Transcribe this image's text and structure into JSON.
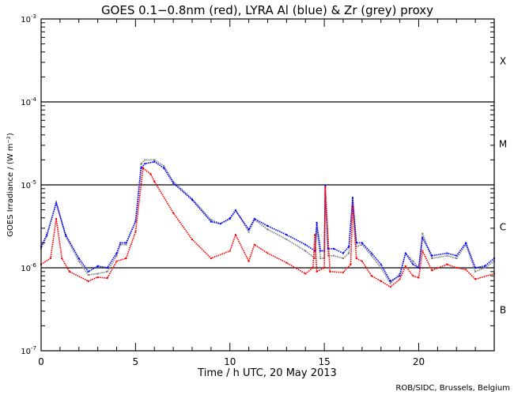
{
  "chart_data": {
    "type": "line",
    "title": "GOES 0.1−0.8nm (red), LYRA Al (blue) & Zr (grey) proxy",
    "xlabel": "Time / h UTC, 20 May 2013",
    "ylabel": "GOES Irradiance / (W m⁻²)",
    "xlim": [
      0,
      24
    ],
    "ylim": [
      1e-07,
      0.001
    ],
    "yscale": "log",
    "x_ticks": [
      "0",
      "5",
      "10",
      "15",
      "20"
    ],
    "y_ticks": [
      {
        "base": "10",
        "exp": "-3"
      },
      {
        "base": "10",
        "exp": "-4"
      },
      {
        "base": "10",
        "exp": "-5"
      },
      {
        "base": "10",
        "exp": "-6"
      },
      {
        "base": "10",
        "exp": "-7"
      }
    ],
    "flare_classes": [
      "X",
      "M",
      "C",
      "B"
    ],
    "reference_lines": [
      0.0001,
      1e-05,
      1e-06
    ],
    "credit": "ROB/SIDC, Brussels, Belgium",
    "series": [
      {
        "name": "LYRA Zr proxy",
        "color": "#808080",
        "x": [
          0,
          0.3,
          0.8,
          1.3,
          2,
          2.5,
          3,
          3.5,
          4,
          4.2,
          4.5,
          5,
          5.3,
          5.5,
          6,
          6.5,
          7,
          8,
          9,
          9.5,
          10,
          10.3,
          11,
          11.3,
          12,
          13,
          14,
          14.5,
          14.6,
          14.8,
          15,
          15.05,
          15.2,
          15.5,
          16,
          16.3,
          16.5,
          16.7,
          17,
          17.5,
          18,
          18.5,
          19,
          19.3,
          19.7,
          20,
          20.2,
          20.7,
          21.5,
          22,
          22.5,
          23,
          23.5,
          24
        ],
        "values": [
          1.7e-06,
          2.4e-06,
          6.3e-06,
          2.4e-06,
          1.2e-06,
          8.2e-07,
          8.5e-07,
          9e-07,
          1.4e-06,
          1.9e-06,
          1.9e-06,
          3.6e-06,
          1.8e-05,
          2e-05,
          2e-05,
          1.7e-05,
          1.1e-05,
          6.8e-06,
          3.8e-06,
          3.4e-06,
          4e-06,
          5e-06,
          2.7e-06,
          3.8e-06,
          2.9e-06,
          2.2e-06,
          1.6e-06,
          1.3e-06,
          3e-06,
          1.3e-06,
          1.3e-06,
          8e-06,
          1.4e-06,
          1.4e-06,
          1.3e-06,
          1.5e-06,
          6.5e-06,
          1.8e-06,
          1.9e-06,
          1.4e-06,
          1e-06,
          6.5e-07,
          8.5e-07,
          1.5e-06,
          1.2e-06,
          1e-06,
          2.6e-06,
          1.3e-06,
          1.4e-06,
          1.3e-06,
          1.9e-06,
          9e-07,
          1e-06,
          1.2e-06
        ]
      },
      {
        "name": "LYRA Al proxy",
        "color": "#0000ff",
        "x": [
          0,
          0.3,
          0.8,
          1.3,
          2,
          2.5,
          3,
          3.5,
          4,
          4.2,
          4.5,
          5,
          5.3,
          5.5,
          6,
          6.5,
          7,
          8,
          9,
          9.5,
          10,
          10.3,
          11,
          11.3,
          12,
          13,
          14,
          14.5,
          14.6,
          14.8,
          15,
          15.05,
          15.2,
          15.5,
          16,
          16.3,
          16.5,
          16.7,
          17,
          17.5,
          18,
          18.5,
          19,
          19.3,
          19.7,
          20,
          20.2,
          20.7,
          21.5,
          22,
          22.5,
          23,
          23.5,
          24
        ],
        "values": [
          1.8e-06,
          2.5e-06,
          6e-06,
          2.5e-06,
          1.3e-06,
          9e-07,
          1.05e-06,
          1e-06,
          1.5e-06,
          2e-06,
          2e-06,
          3.6e-06,
          1.6e-05,
          1.8e-05,
          1.9e-05,
          1.6e-05,
          1.05e-05,
          6.6e-06,
          3.6e-06,
          3.4e-06,
          3.9e-06,
          4.9e-06,
          2.9e-06,
          3.9e-06,
          3.2e-06,
          2.5e-06,
          1.9e-06,
          1.6e-06,
          3.5e-06,
          1.6e-06,
          1.6e-06,
          9.8e-06,
          1.7e-06,
          1.7e-06,
          1.5e-06,
          1.8e-06,
          7e-06,
          2e-06,
          2e-06,
          1.5e-06,
          1.1e-06,
          6.9e-07,
          8e-07,
          1.5e-06,
          1.1e-06,
          1e-06,
          2.3e-06,
          1.4e-06,
          1.5e-06,
          1.4e-06,
          2e-06,
          1e-06,
          1.05e-06,
          1.3e-06
        ]
      },
      {
        "name": "GOES 0.1-0.8nm",
        "color": "#ff0000",
        "x": [
          0,
          0.5,
          0.8,
          1.1,
          1.5,
          2.5,
          3,
          3.5,
          4,
          4.5,
          5,
          5.4,
          5.8,
          6,
          7,
          8,
          9,
          10,
          10.3,
          11,
          11.3,
          12,
          13,
          14,
          14.4,
          14.5,
          14.6,
          15,
          15.05,
          15.3,
          16,
          16.4,
          16.5,
          16.7,
          17,
          17.5,
          18,
          18.5,
          19,
          19.3,
          19.7,
          20,
          20.2,
          20.7,
          21.5,
          22,
          22.5,
          23,
          24
        ],
        "values": [
          1.1e-06,
          1.3e-06,
          3.9e-06,
          1.3e-06,
          9e-07,
          6.9e-07,
          7.7e-07,
          7.5e-07,
          1.2e-06,
          1.3e-06,
          2.7e-06,
          1.6e-05,
          1.35e-05,
          1.1e-05,
          4.6e-06,
          2.2e-06,
          1.3e-06,
          1.6e-06,
          2.5e-06,
          1.2e-06,
          1.9e-06,
          1.5e-06,
          1.15e-06,
          8.5e-07,
          1e-06,
          2.5e-06,
          9e-07,
          1e-06,
          9.3e-06,
          9e-07,
          8.8e-07,
          1.1e-06,
          5.6e-06,
          1.3e-06,
          1.2e-06,
          8e-07,
          6.9e-07,
          5.9e-07,
          7.3e-07,
          1.05e-06,
          8e-07,
          7.6e-07,
          1.6e-06,
          9.3e-07,
          1.1e-06,
          1e-06,
          9.5e-07,
          7.3e-07,
          8.5e-07
        ]
      }
    ]
  }
}
